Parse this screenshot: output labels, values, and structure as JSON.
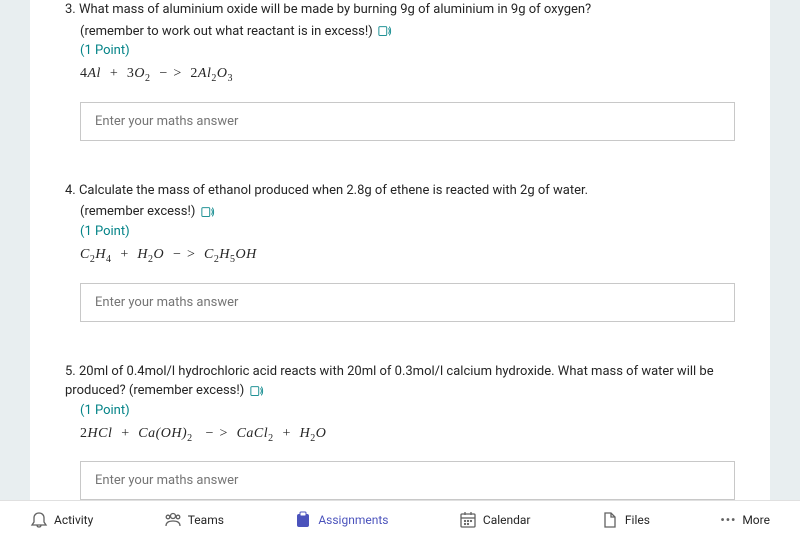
{
  "questions": [
    {
      "number": "3.",
      "text": "What mass of aluminium oxide will be made by burning 9g of aluminium in 9g of oxygen?",
      "hint": "(remember to work out what reactant is in excess!)",
      "points": "(1 Point)",
      "equation_html": "<span class='num'>4</span>Al &nbsp;+&nbsp; <span class='num'>3</span>O<sub>2</sub> &nbsp;&minus; &gt;&nbsp; <span class='num'>2</span>Al<sub>2</sub>O<sub>3</sub>",
      "placeholder": "Enter your maths answer"
    },
    {
      "number": "4.",
      "text": "Calculate the mass of ethanol produced when 2.8g of ethene is reacted with 2g of water.",
      "hint": "(remember excess!)",
      "points": "(1 Point)",
      "equation_html": "C<sub>2</sub>H<sub>4</sub> &nbsp;+&nbsp; H<sub>2</sub>O &nbsp;&minus; &gt;&nbsp; C<sub>2</sub>H<sub>5</sub>OH",
      "placeholder": "Enter your maths answer"
    },
    {
      "number": "5.",
      "text": "20ml of 0.4mol/l hydrochloric acid reacts with  20ml of 0.3mol/l calcium hydroxide. What mass of water will be produced?",
      "hint": "(remember excess!)",
      "points": "(1 Point)",
      "equation_html": "<span class='num'>2</span>HCl &nbsp;+&nbsp; Ca(OH)<sub>2</sub> &nbsp; &minus; &gt;&nbsp; CaCl<sub>2</sub> &nbsp;+&nbsp; H<sub>2</sub>O",
      "placeholder": "Enter your maths answer"
    }
  ],
  "nav": {
    "activity": "Activity",
    "teams": "Teams",
    "assignments": "Assignments",
    "calendar": "Calendar",
    "files": "Files",
    "more": "More"
  },
  "colors": {
    "background": "#e8eef0",
    "page": "#ffffff",
    "text": "#252525",
    "points": "#038387",
    "border": "#c8c8c8",
    "active": "#4b53bc",
    "icon": "#616161"
  }
}
